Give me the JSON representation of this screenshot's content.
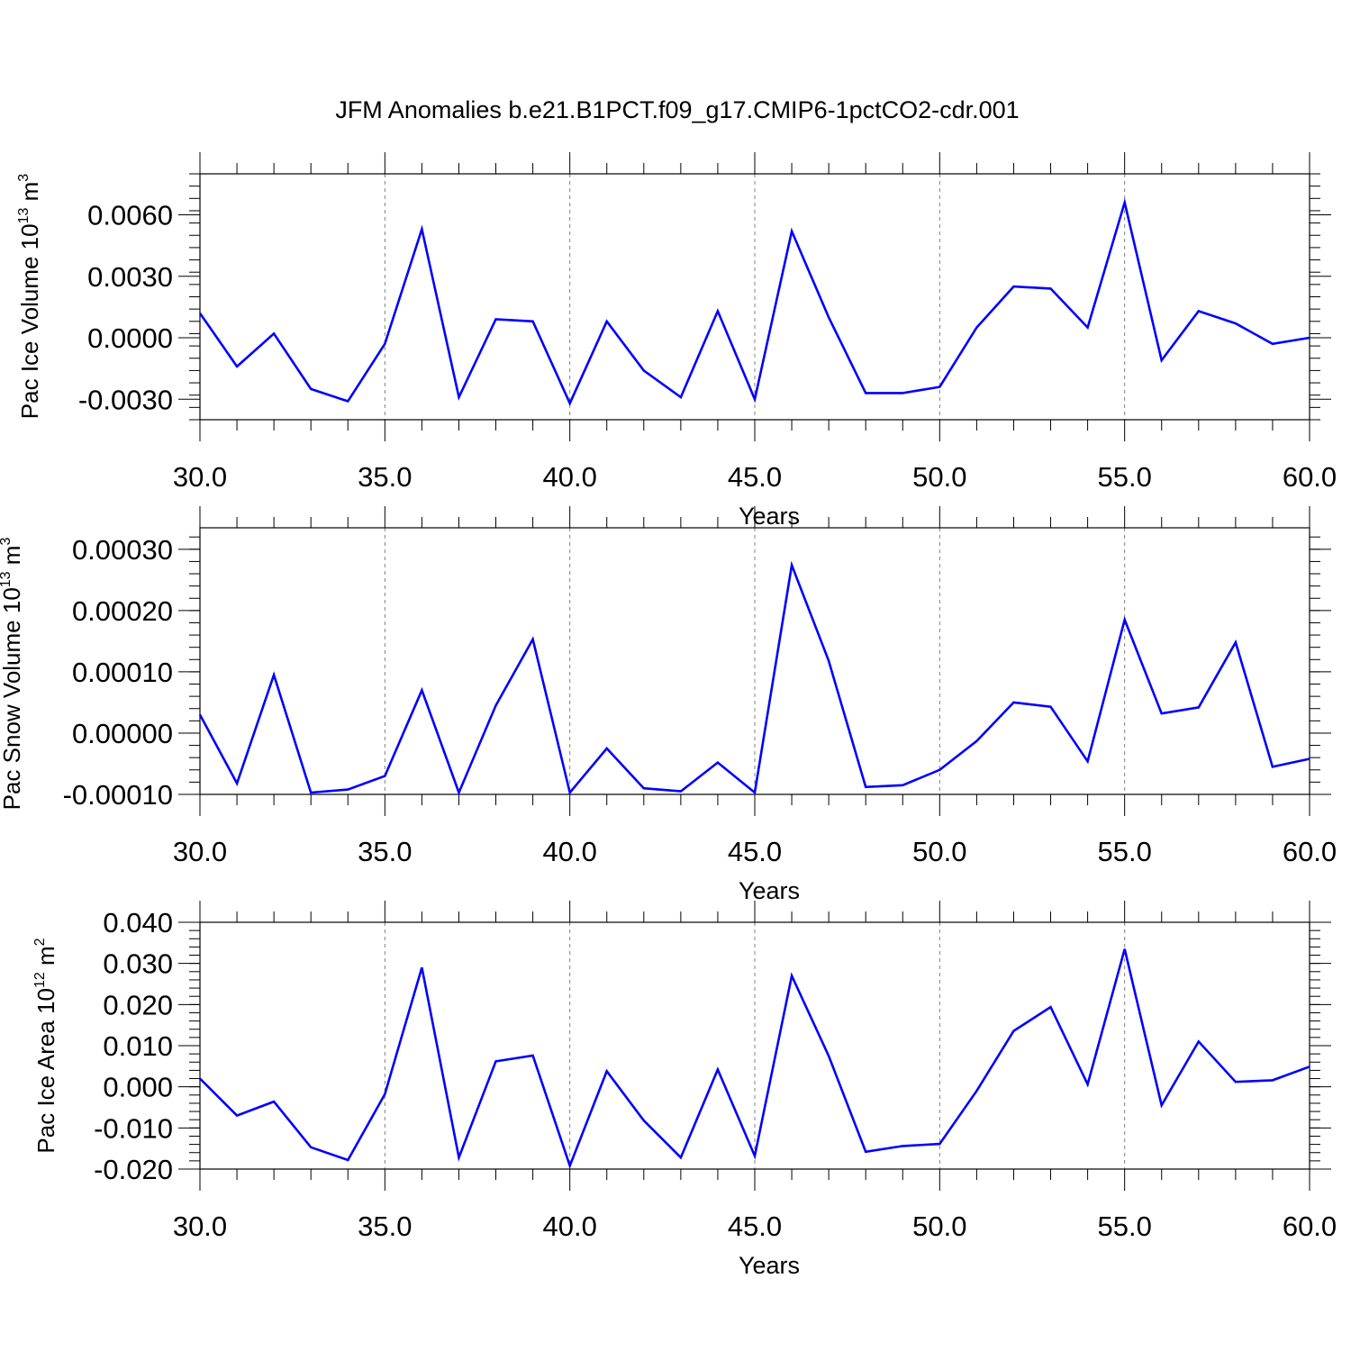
{
  "figure_title": "JFM Anomalies b.e21.B1PCT.f09_g17.CMIP6-1pctCO2-cdr.001",
  "colors": {
    "line": "#0000ff",
    "axis": "#000000",
    "grid": "#808080",
    "background": "#ffffff"
  },
  "chart_data": [
    {
      "type": "line",
      "title": "",
      "xlabel": "Years",
      "ylabel": "Pac Ice Volume 10",
      "ylabel_sup": "13",
      "ylabel_unit": " m",
      "ylabel_unit_sup": "3",
      "xlim": [
        30,
        60
      ],
      "ylim": [
        -0.004,
        0.008
      ],
      "xticks": [
        30,
        35,
        40,
        45,
        50,
        55,
        60
      ],
      "xtick_labels": [
        "30.0",
        "35.0",
        "40.0",
        "45.0",
        "50.0",
        "55.0",
        "60.0"
      ],
      "yticks": [
        -0.003,
        0.0,
        0.003,
        0.006
      ],
      "ytick_labels": [
        "-0.0030",
        "0.0000",
        "0.0030",
        "0.0060"
      ],
      "ygrid": false,
      "xgrid": true,
      "x": [
        30,
        31,
        32,
        33,
        34,
        35,
        36,
        37,
        38,
        39,
        40,
        41,
        42,
        43,
        44,
        45,
        46,
        47,
        48,
        49,
        50,
        51,
        52,
        53,
        54,
        55,
        56,
        57,
        58,
        59,
        60
      ],
      "series": [
        {
          "values": [
            0.0012,
            -0.0014,
            0.0002,
            -0.0025,
            -0.0031,
            -0.0003,
            0.0053,
            -0.0029,
            0.0009,
            0.0008,
            -0.0032,
            0.0008,
            -0.0016,
            -0.0029,
            0.0013,
            -0.003,
            0.0052,
            0.001,
            -0.0027,
            -0.0027,
            -0.0024,
            0.0005,
            0.0025,
            0.0024,
            0.0005,
            0.0066,
            -0.0011,
            0.0013,
            0.0007,
            -0.0003,
            0.0
          ]
        }
      ]
    },
    {
      "type": "line",
      "title": "",
      "xlabel": "Years",
      "ylabel": "Pac Snow Volume 10",
      "ylabel_sup": "13",
      "ylabel_unit": " m",
      "ylabel_unit_sup": "3",
      "xlim": [
        30,
        60
      ],
      "ylim": [
        -0.0001,
        0.000335
      ],
      "xticks": [
        30,
        35,
        40,
        45,
        50,
        55,
        60
      ],
      "xtick_labels": [
        "30.0",
        "35.0",
        "40.0",
        "45.0",
        "50.0",
        "55.0",
        "60.0"
      ],
      "yticks": [
        -0.0001,
        0.0,
        0.0001,
        0.0002,
        0.0003
      ],
      "ytick_labels": [
        "-0.00010",
        "0.00000",
        "0.00010",
        "0.00020",
        "0.00030"
      ],
      "ygrid": false,
      "xgrid": true,
      "x": [
        30,
        31,
        32,
        33,
        34,
        35,
        36,
        37,
        38,
        39,
        40,
        41,
        42,
        43,
        44,
        45,
        46,
        47,
        48,
        49,
        50,
        51,
        52,
        53,
        54,
        55,
        56,
        57,
        58,
        59,
        60
      ],
      "series": [
        {
          "values": [
            3e-05,
            -8.2e-05,
            9.5e-05,
            -9.7e-05,
            -9.2e-05,
            -7e-05,
            7e-05,
            -9.7e-05,
            4.5e-05,
            0.000153,
            -9.7e-05,
            -2.5e-05,
            -9e-05,
            -9.5e-05,
            -4.8e-05,
            -9.7e-05,
            0.000274,
            0.000118,
            -8.8e-05,
            -8.5e-05,
            -6e-05,
            -1.3e-05,
            5e-05,
            4.3e-05,
            -4.6e-05,
            0.000185,
            3.2e-05,
            4.2e-05,
            0.000148,
            -5.5e-05,
            -4.2e-05
          ]
        }
      ]
    },
    {
      "type": "line",
      "title": "",
      "xlabel": "Years",
      "ylabel": "Pac Ice Area 10",
      "ylabel_sup": "12",
      "ylabel_unit": " m",
      "ylabel_unit_sup": "2",
      "xlim": [
        30,
        60
      ],
      "ylim": [
        -0.02,
        0.04
      ],
      "xticks": [
        30,
        35,
        40,
        45,
        50,
        55,
        60
      ],
      "xtick_labels": [
        "30.0",
        "35.0",
        "40.0",
        "45.0",
        "50.0",
        "55.0",
        "60.0"
      ],
      "yticks": [
        -0.02,
        -0.01,
        0.0,
        0.01,
        0.02,
        0.03,
        0.04
      ],
      "ytick_labels": [
        "-0.020",
        "-0.010",
        "0.000",
        "0.010",
        "0.020",
        "0.030",
        "0.040"
      ],
      "ygrid": false,
      "xgrid": true,
      "x": [
        30,
        31,
        32,
        33,
        34,
        35,
        36,
        37,
        38,
        39,
        40,
        41,
        42,
        43,
        44,
        45,
        46,
        47,
        48,
        49,
        50,
        51,
        52,
        53,
        54,
        55,
        56,
        57,
        58,
        59,
        60
      ],
      "series": [
        {
          "values": [
            0.002,
            -0.007,
            -0.0036,
            -0.0147,
            -0.0178,
            -0.0018,
            0.029,
            -0.0172,
            0.0062,
            0.0076,
            -0.0192,
            0.0038,
            -0.0082,
            -0.0172,
            0.0042,
            -0.0168,
            0.027,
            0.0075,
            -0.0158,
            -0.0144,
            -0.0139,
            -0.001,
            0.0136,
            0.0194,
            0.0006,
            0.0335,
            -0.0045,
            0.011,
            0.0012,
            0.0016,
            0.0049
          ]
        }
      ]
    }
  ]
}
